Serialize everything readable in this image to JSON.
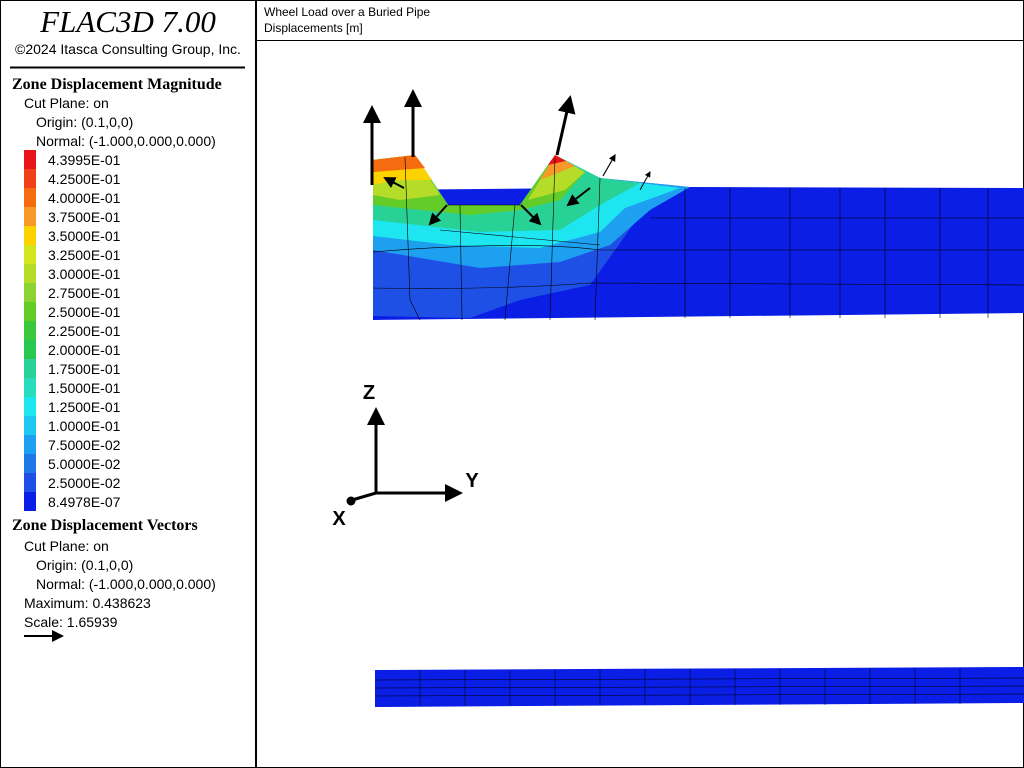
{
  "header": {
    "title": "FLAC3D 7.00",
    "copyright": "©2024 Itasca Consulting Group, Inc."
  },
  "plot_title": [
    "Wheel Load over a Buried Pipe",
    "Displacements [m]"
  ],
  "legend": {
    "contour": {
      "title": "Zone Displacement Magnitude",
      "lines": [
        "Cut Plane: on",
        "Origin: (0.1,0,0)",
        "Normal: (-1.000,0.000,0.000)"
      ],
      "levels": [
        {
          "label": "4.3995E-01",
          "color": "#e8141a"
        },
        {
          "label": "4.2500E-01",
          "color": "#f0401a"
        },
        {
          "label": "4.0000E-01",
          "color": "#f56b10"
        },
        {
          "label": "3.7500E-01",
          "color": "#f89a28"
        },
        {
          "label": "3.5000E-01",
          "color": "#fcd200"
        },
        {
          "label": "3.2500E-01",
          "color": "#d2e61e"
        },
        {
          "label": "3.0000E-01",
          "color": "#b4dc28"
        },
        {
          "label": "2.7500E-01",
          "color": "#8cd232"
        },
        {
          "label": "2.5000E-01",
          "color": "#64cc28"
        },
        {
          "label": "2.2500E-01",
          "color": "#3cc83c"
        },
        {
          "label": "2.0000E-01",
          "color": "#28c850"
        },
        {
          "label": "1.7500E-01",
          "color": "#28d296"
        },
        {
          "label": "1.5000E-01",
          "color": "#28dcbe"
        },
        {
          "label": "1.2500E-01",
          "color": "#1ee6f0"
        },
        {
          "label": "1.0000E-01",
          "color": "#1ec8f0"
        },
        {
          "label": "7.5000E-02",
          "color": "#1ea0f0"
        },
        {
          "label": "5.0000E-02",
          "color": "#1e78e6"
        },
        {
          "label": "2.5000E-02",
          "color": "#1e50e6"
        },
        {
          "label": "8.4978E-07",
          "color": "#0a1ee6"
        }
      ]
    },
    "vectors": {
      "title": "Zone Displacement Vectors",
      "lines": [
        "Cut Plane: on",
        "Origin: (0.1,0,0)",
        "Normal: (-1.000,0.000,0.000)",
        "Maximum: 0.438623",
        "Scale: 1.65939"
      ]
    }
  },
  "axes": {
    "z": "Z",
    "y": "Y",
    "x": "X"
  }
}
